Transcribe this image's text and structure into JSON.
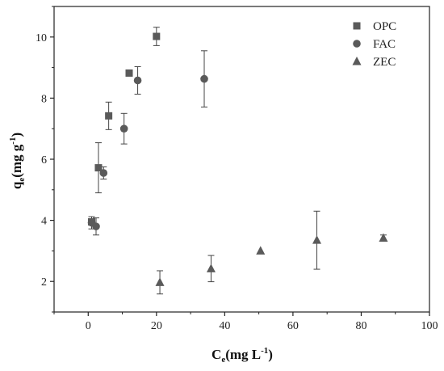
{
  "chart_data": {
    "type": "scatter",
    "xlabel": {
      "main": "C",
      "sub": "e",
      "unit_pre": "(mg L",
      "unit_sup": "-1",
      "unit_post": ")"
    },
    "ylabel": {
      "main": "q",
      "sub": "e",
      "unit_pre": "(mg g",
      "unit_sup": "-1",
      "unit_post": ")"
    },
    "xlim": [
      -10,
      100
    ],
    "ylim": [
      1,
      11
    ],
    "xticks": [
      "0",
      "20",
      "40",
      "60",
      "80",
      "100"
    ],
    "yticks": [
      "2",
      "4",
      "6",
      "8",
      "10"
    ],
    "legend_position": "top-right",
    "marker_color": "#5a5a5a",
    "series": [
      {
        "name": "OPC",
        "marker": "square",
        "points": [
          {
            "x": 1.0,
            "y": 3.95,
            "err": 0.1
          },
          {
            "x": 3.0,
            "y": 5.72,
            "err": 0.82
          },
          {
            "x": 6.0,
            "y": 7.42,
            "err": 0.45
          },
          {
            "x": 12.0,
            "y": 8.82,
            "err": 0.0
          },
          {
            "x": 20.0,
            "y": 10.02,
            "err": 0.3
          }
        ]
      },
      {
        "name": "FAC",
        "marker": "circle",
        "points": [
          {
            "x": 1.0,
            "y": 3.92,
            "err": 0.2
          },
          {
            "x": 2.3,
            "y": 3.8,
            "err": 0.28
          },
          {
            "x": 4.5,
            "y": 5.55,
            "err": 0.2
          },
          {
            "x": 10.5,
            "y": 7.0,
            "err": 0.5
          },
          {
            "x": 14.5,
            "y": 8.58,
            "err": 0.45
          },
          {
            "x": 34.0,
            "y": 8.63,
            "err": 0.92
          }
        ]
      },
      {
        "name": "ZEC",
        "marker": "triangle",
        "points": [
          {
            "x": 21.0,
            "y": 1.97,
            "err": 0.38
          },
          {
            "x": 36.0,
            "y": 2.42,
            "err": 0.43
          },
          {
            "x": 50.5,
            "y": 3.0,
            "err": 0.0
          },
          {
            "x": 67.0,
            "y": 3.35,
            "err": 0.95
          },
          {
            "x": 86.5,
            "y": 3.42,
            "err": 0.1
          }
        ]
      }
    ]
  }
}
